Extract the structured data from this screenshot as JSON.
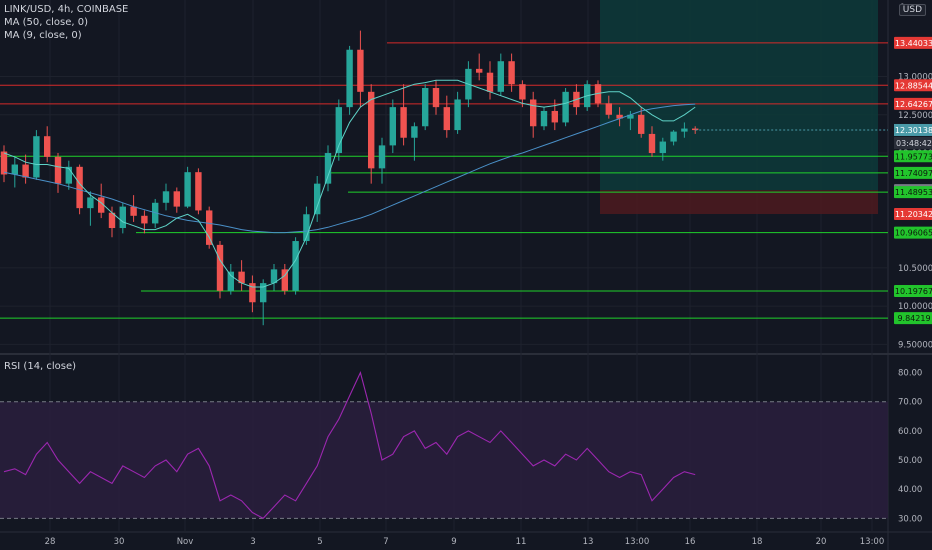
{
  "header": {
    "symbol_line": "LINK/USD, 4h, COINBASE",
    "ma50_label": "MA (50, close, 0)",
    "ma9_label": "MA (9, close, 0)",
    "currency_button": "USD",
    "top_tick_fragment": "1",
    "countdown": "03:48:42"
  },
  "rsi_panel": {
    "label": "RSI (14, close)"
  },
  "colors": {
    "background": "#131722",
    "grid": "#1e222d",
    "up_candle": "#26a69a",
    "down_candle": "#ef5350",
    "ma50": "#4a90c8",
    "ma9": "#5fd3c8",
    "support_line": "#1fd12b",
    "resistance_line": "#d52a2a",
    "rsi_line": "#9c27b0",
    "rsi_band": "#2a1f3d",
    "target_zone": "#0d3a3a",
    "stop_zone": "#4a1a1f",
    "axis_text": "#b2b5be",
    "current_price": "#4a9aa8",
    "neutral_tag": "#787b86"
  },
  "chart_data": [
    {
      "type": "candlestick",
      "title": "LINK/USD, 4h, COINBASE",
      "x_tick_labels": [
        "28",
        "30",
        "Nov",
        "3",
        "5",
        "7",
        "9",
        "11",
        "13",
        "13:00",
        "16",
        "18",
        "20",
        "13:00"
      ],
      "y_tick_labels": [
        "9.50000",
        "10.00000",
        "10.50000",
        "12.00000",
        "12.50000",
        "13.00000"
      ],
      "ylim": [
        9.4,
        14.0
      ],
      "grid": true,
      "price_levels": [
        {
          "value": 13.44033,
          "label": "13.44033",
          "kind": "resistance"
        },
        {
          "value": 12.88544,
          "label": "12.88544",
          "kind": "resistance"
        },
        {
          "value": 12.64267,
          "label": "12.64267",
          "kind": "resistance"
        },
        {
          "value": 11.95773,
          "label": "11.95773",
          "kind": "support"
        },
        {
          "value": 11.74097,
          "label": "11.74097",
          "kind": "support"
        },
        {
          "value": 11.51555,
          "label": "11.51555",
          "kind": "neutral"
        },
        {
          "value": 11.48953,
          "label": "11.48953",
          "kind": "support"
        },
        {
          "value": 11.20342,
          "label": "11.20342",
          "kind": "stop"
        },
        {
          "value": 10.96065,
          "label": "10.96065",
          "kind": "support"
        },
        {
          "value": 10.19767,
          "label": "10.19767",
          "kind": "support"
        },
        {
          "value": 9.84219,
          "label": "9.84219",
          "kind": "support"
        }
      ],
      "current_price": {
        "value": 12.30138,
        "label": "12.30138"
      },
      "series": [
        {
          "name": "MA (50, close, 0)",
          "values": [
            11.75,
            11.72,
            11.69,
            11.66,
            11.63,
            11.6,
            11.56,
            11.52,
            11.48,
            11.44,
            11.4,
            11.35,
            11.3,
            11.26,
            11.22,
            11.18,
            11.15,
            11.12,
            11.1,
            11.08,
            11.06,
            11.03,
            11.0,
            10.98,
            10.97,
            10.96,
            10.96,
            10.97,
            10.98,
            11.0,
            11.03,
            11.07,
            11.11,
            11.15,
            11.2,
            11.26,
            11.32,
            11.38,
            11.44,
            11.5,
            11.56,
            11.62,
            11.68,
            11.74,
            11.8,
            11.86,
            11.91,
            11.96,
            12.0,
            12.05,
            12.1,
            12.15,
            12.2,
            12.25,
            12.3,
            12.35,
            12.4,
            12.45,
            12.5,
            12.55,
            12.58,
            12.6,
            12.62,
            12.63,
            12.64
          ]
        },
        {
          "name": "MA (9, close, 0)",
          "values": [
            12.0,
            11.95,
            11.88,
            11.85,
            11.85,
            11.82,
            11.8,
            11.6,
            11.45,
            11.35,
            11.22,
            11.1,
            11.05,
            11.0,
            11.0,
            11.05,
            11.15,
            11.2,
            11.12,
            10.9,
            10.6,
            10.4,
            10.3,
            10.25,
            10.25,
            10.3,
            10.4,
            10.6,
            10.9,
            11.3,
            11.7,
            12.1,
            12.4,
            12.6,
            12.7,
            12.75,
            12.8,
            12.85,
            12.9,
            12.92,
            12.95,
            12.95,
            12.95,
            12.9,
            12.85,
            12.8,
            12.75,
            12.7,
            12.65,
            12.62,
            12.6,
            12.62,
            12.65,
            12.7,
            12.75,
            12.78,
            12.8,
            12.8,
            12.72,
            12.6,
            12.5,
            12.42,
            12.42,
            12.5,
            12.6
          ]
        },
        {
          "name": "candles",
          "ohlc": [
            [
              12.02,
              12.1,
              11.62,
              11.72
            ],
            [
              11.72,
              11.95,
              11.55,
              11.85
            ],
            [
              11.85,
              11.98,
              11.6,
              11.68
            ],
            [
              11.68,
              12.3,
              11.65,
              12.22
            ],
            [
              12.22,
              12.35,
              11.88,
              11.95
            ],
            [
              11.95,
              12.0,
              11.48,
              11.6
            ],
            [
              11.6,
              11.9,
              11.52,
              11.82
            ],
            [
              11.82,
              11.85,
              11.2,
              11.28
            ],
            [
              11.28,
              11.5,
              11.05,
              11.42
            ],
            [
              11.42,
              11.6,
              11.15,
              11.22
            ],
            [
              11.22,
              11.3,
              10.9,
              11.02
            ],
            [
              11.02,
              11.35,
              10.95,
              11.3
            ],
            [
              11.3,
              11.45,
              11.1,
              11.18
            ],
            [
              11.18,
              11.25,
              10.95,
              11.08
            ],
            [
              11.08,
              11.4,
              11.02,
              11.35
            ],
            [
              11.35,
              11.6,
              11.25,
              11.5
            ],
            [
              11.5,
              11.55,
              11.22,
              11.3
            ],
            [
              11.3,
              11.82,
              11.28,
              11.75
            ],
            [
              11.75,
              11.8,
              11.2,
              11.25
            ],
            [
              11.25,
              11.3,
              10.75,
              10.8
            ],
            [
              10.8,
              10.85,
              10.1,
              10.2
            ],
            [
              10.2,
              10.55,
              10.15,
              10.45
            ],
            [
              10.45,
              10.6,
              10.2,
              10.3
            ],
            [
              10.3,
              10.4,
              9.92,
              10.05
            ],
            [
              10.05,
              10.35,
              9.75,
              10.3
            ],
            [
              10.3,
              10.55,
              10.2,
              10.48
            ],
            [
              10.48,
              10.55,
              10.15,
              10.2
            ],
            [
              10.2,
              10.9,
              10.15,
              10.85
            ],
            [
              10.85,
              11.3,
              10.8,
              11.2
            ],
            [
              11.2,
              11.7,
              11.1,
              11.6
            ],
            [
              11.6,
              12.1,
              11.5,
              12.0
            ],
            [
              12.0,
              12.7,
              11.9,
              12.6
            ],
            [
              12.6,
              13.4,
              12.5,
              13.35
            ],
            [
              13.35,
              13.6,
              12.6,
              12.8
            ],
            [
              12.8,
              12.9,
              11.6,
              11.8
            ],
            [
              11.8,
              12.2,
              11.6,
              12.1
            ],
            [
              12.1,
              12.7,
              12.0,
              12.6
            ],
            [
              12.6,
              12.9,
              12.1,
              12.2
            ],
            [
              12.2,
              12.4,
              11.9,
              12.35
            ],
            [
              12.35,
              12.9,
              12.3,
              12.85
            ],
            [
              12.85,
              12.95,
              12.5,
              12.6
            ],
            [
              12.6,
              12.75,
              12.2,
              12.3
            ],
            [
              12.3,
              12.8,
              12.25,
              12.7
            ],
            [
              12.7,
              13.2,
              12.6,
              13.1
            ],
            [
              13.1,
              13.3,
              12.95,
              13.05
            ],
            [
              13.05,
              13.2,
              12.7,
              12.8
            ],
            [
              12.8,
              13.3,
              12.75,
              13.2
            ],
            [
              13.2,
              13.3,
              12.8,
              12.9
            ],
            [
              12.9,
              12.95,
              12.6,
              12.7
            ],
            [
              12.7,
              12.8,
              12.2,
              12.35
            ],
            [
              12.35,
              12.6,
              12.3,
              12.55
            ],
            [
              12.55,
              12.7,
              12.3,
              12.4
            ],
            [
              12.4,
              12.85,
              12.35,
              12.8
            ],
            [
              12.8,
              12.9,
              12.5,
              12.6
            ],
            [
              12.6,
              12.95,
              12.55,
              12.9
            ],
            [
              12.9,
              12.95,
              12.6,
              12.65
            ],
            [
              12.65,
              12.75,
              12.45,
              12.5
            ],
            [
              12.5,
              12.6,
              12.35,
              12.45
            ],
            [
              12.45,
              12.55,
              12.3,
              12.5
            ],
            [
              12.5,
              12.6,
              12.2,
              12.25
            ],
            [
              12.25,
              12.35,
              11.95,
              12.0
            ],
            [
              12.0,
              12.2,
              11.9,
              12.15
            ],
            [
              12.15,
              12.3,
              12.1,
              12.28
            ],
            [
              12.28,
              12.4,
              12.2,
              12.32
            ],
            [
              12.32,
              12.35,
              12.25,
              12.3
            ]
          ]
        }
      ]
    },
    {
      "type": "line",
      "title": "RSI (14, close)",
      "y_tick_labels": [
        "30.00",
        "40.00",
        "50.00",
        "60.00",
        "70.00",
        "80.00"
      ],
      "ylim": [
        26,
        85
      ],
      "band": [
        30,
        70
      ],
      "series": [
        {
          "name": "RSI",
          "values": [
            46,
            47,
            45,
            52,
            56,
            50,
            46,
            42,
            46,
            44,
            42,
            48,
            46,
            44,
            48,
            50,
            46,
            52,
            54,
            48,
            36,
            38,
            36,
            32,
            30,
            34,
            38,
            36,
            42,
            48,
            58,
            64,
            72,
            80,
            66,
            50,
            52,
            58,
            60,
            54,
            56,
            52,
            58,
            60,
            58,
            56,
            60,
            56,
            52,
            48,
            50,
            48,
            52,
            50,
            54,
            50,
            46,
            44,
            46,
            45,
            36,
            40,
            44,
            46,
            45
          ]
        }
      ]
    }
  ]
}
